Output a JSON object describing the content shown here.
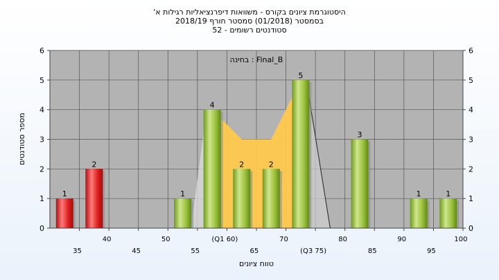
{
  "header": {
    "line1": "'היסטוגרמת ציונים בקורס - משוואות דיפרנציאליות רגילות א",
    "line2": "בסמסטר  (01/2018)  סמסטר חורף 2018/19",
    "line3": "סטודנטים רשומים - 52"
  },
  "chart_data": {
    "type": "bar",
    "categories": [
      "35",
      "40",
      "45",
      "50",
      "55",
      "60",
      "65",
      "70",
      "75",
      "80",
      "85",
      "90",
      "95",
      "100"
    ],
    "values": [
      1,
      2,
      0,
      0,
      1,
      4,
      2,
      2,
      5,
      0,
      3,
      0,
      1,
      1
    ],
    "bar_colors": [
      "#e02020",
      "#e02020",
      "#9dc23f",
      "#9dc23f",
      "#9dc23f",
      "#9dc23f",
      "#9dc23f",
      "#9dc23f",
      "#9dc23f",
      "#9dc23f",
      "#9dc23f",
      "#9dc23f",
      "#9dc23f",
      "#9dc23f"
    ],
    "quartile_labels": {
      "60": "(Q1 60)",
      "75": "(Q3 75)"
    },
    "quartile_band": [
      60,
      75
    ],
    "annotation": "בחינה : Final_B",
    "xlabel": "טווח ציונים",
    "ylabel": "מספר סטודנטים",
    "ylim": [
      0,
      6
    ],
    "yticks": [
      0,
      1,
      2,
      3,
      4,
      5,
      6
    ],
    "grid": true,
    "colors": {
      "plot_bg": "#b3b3b3",
      "band": "#ffc94d",
      "red": "#e02020",
      "green": "#9dc23f"
    }
  }
}
